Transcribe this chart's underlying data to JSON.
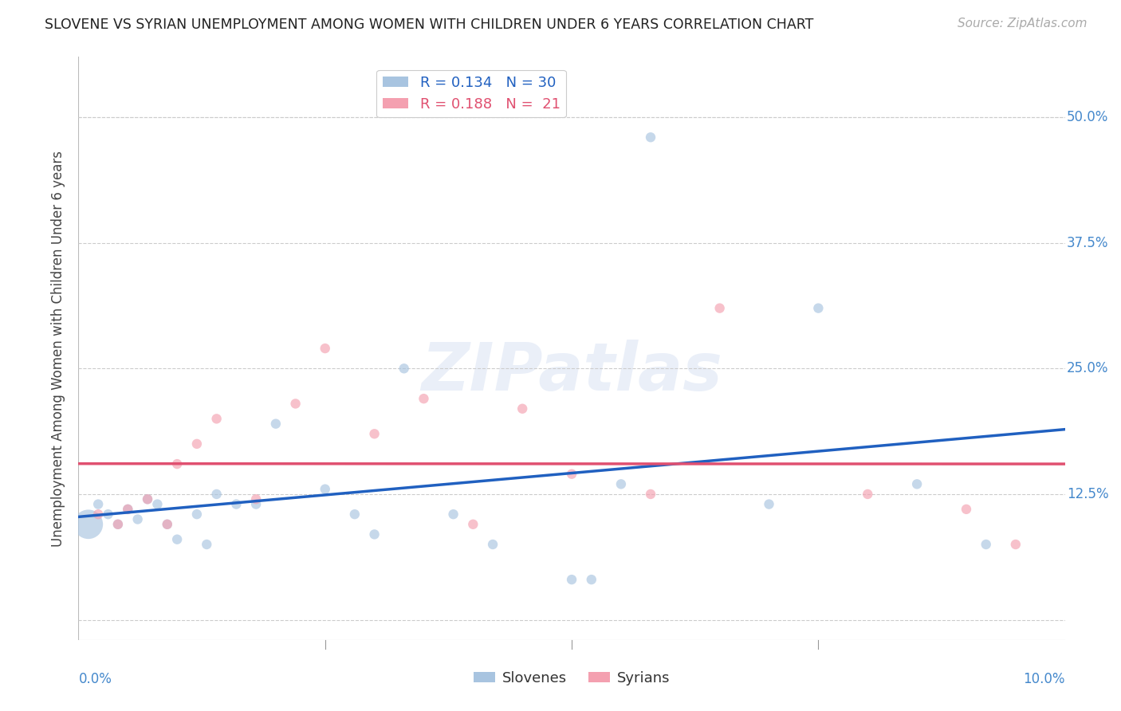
{
  "title": "SLOVENE VS SYRIAN UNEMPLOYMENT AMONG WOMEN WITH CHILDREN UNDER 6 YEARS CORRELATION CHART",
  "source": "Source: ZipAtlas.com",
  "ylabel": "Unemployment Among Women with Children Under 6 years",
  "xlim": [
    0.0,
    0.1
  ],
  "ylim": [
    -0.02,
    0.56
  ],
  "yticks": [
    0.0,
    0.125,
    0.25,
    0.375,
    0.5
  ],
  "ytick_labels": [
    "",
    "12.5%",
    "25.0%",
    "37.5%",
    "50.0%"
  ],
  "xtick_positions": [
    0.0,
    0.025,
    0.05,
    0.075,
    0.1
  ],
  "slovene_color": "#a8c4e0",
  "syrian_color": "#f4a0b0",
  "slovene_line_color": "#2060c0",
  "syrian_line_color": "#e05070",
  "legend_slovene_label": "R = 0.134   N = 30",
  "legend_syrian_label": "R = 0.188   N =  21",
  "legend_bottom_slovene": "Slovenes",
  "legend_bottom_syrian": "Syrians",
  "watermark": "ZIPatlas",
  "slovene_x": [
    0.001,
    0.002,
    0.003,
    0.004,
    0.005,
    0.006,
    0.007,
    0.008,
    0.009,
    0.01,
    0.012,
    0.013,
    0.014,
    0.016,
    0.018,
    0.02,
    0.025,
    0.028,
    0.03,
    0.033,
    0.038,
    0.042,
    0.05,
    0.052,
    0.055,
    0.058,
    0.07,
    0.075,
    0.085,
    0.092
  ],
  "slovene_y": [
    0.095,
    0.115,
    0.105,
    0.095,
    0.11,
    0.1,
    0.12,
    0.115,
    0.095,
    0.08,
    0.105,
    0.075,
    0.125,
    0.115,
    0.115,
    0.195,
    0.13,
    0.105,
    0.085,
    0.25,
    0.105,
    0.075,
    0.04,
    0.04,
    0.135,
    0.48,
    0.115,
    0.31,
    0.135,
    0.075
  ],
  "slovene_size": [
    700,
    80,
    80,
    80,
    80,
    80,
    80,
    80,
    80,
    80,
    80,
    80,
    80,
    80,
    80,
    80,
    80,
    80,
    80,
    80,
    80,
    80,
    80,
    80,
    80,
    80,
    80,
    80,
    80,
    80
  ],
  "syrian_x": [
    0.002,
    0.004,
    0.005,
    0.007,
    0.009,
    0.01,
    0.012,
    0.014,
    0.018,
    0.022,
    0.025,
    0.03,
    0.035,
    0.04,
    0.045,
    0.05,
    0.058,
    0.065,
    0.08,
    0.09,
    0.095
  ],
  "syrian_y": [
    0.105,
    0.095,
    0.11,
    0.12,
    0.095,
    0.155,
    0.175,
    0.2,
    0.12,
    0.215,
    0.27,
    0.185,
    0.22,
    0.095,
    0.21,
    0.145,
    0.125,
    0.31,
    0.125,
    0.11,
    0.075
  ],
  "syrian_size": [
    80,
    80,
    80,
    80,
    80,
    80,
    80,
    80,
    80,
    80,
    80,
    80,
    80,
    80,
    80,
    80,
    80,
    80,
    80,
    80,
    80
  ],
  "title_color": "#222222",
  "axis_color": "#4488cc",
  "background_color": "#ffffff",
  "grid_color": "#cccccc"
}
